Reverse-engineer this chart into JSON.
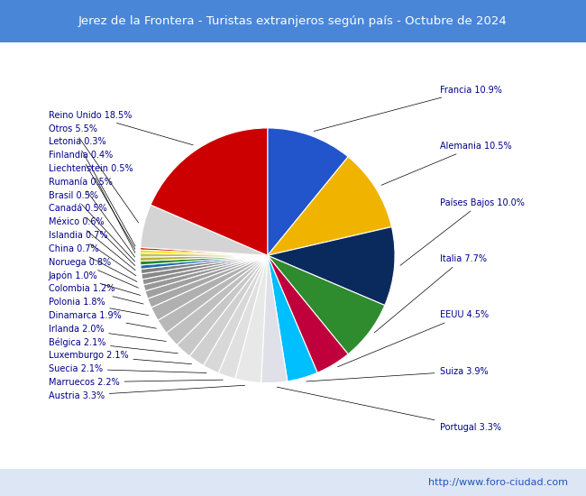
{
  "title": "Jerez de la Frontera - Turistas extranjeros según país - Octubre de 2024",
  "title_bg": "#4a86d8",
  "title_color": "white",
  "footer": "http://www.foro-ciudad.com",
  "footer_bg": "#dce6f5",
  "slices": [
    {
      "label": "Francia",
      "pct": 10.9,
      "color": "#2255cc"
    },
    {
      "label": "Alemania",
      "pct": 10.5,
      "color": "#f0b400"
    },
    {
      "label": "Países Bajos",
      "pct": 10.0,
      "color": "#0a2a5e"
    },
    {
      "label": "Italia",
      "pct": 7.7,
      "color": "#2e8b2e"
    },
    {
      "label": "EEUU",
      "pct": 4.5,
      "color": "#c0003c"
    },
    {
      "label": "Suiza",
      "pct": 3.9,
      "color": "#00bfff"
    },
    {
      "label": "Portugal",
      "pct": 3.3,
      "color": "#e0e0e8"
    },
    {
      "label": "Austria",
      "pct": 3.3,
      "color": "#e8e8e8"
    },
    {
      "label": "Marruecos",
      "pct": 2.2,
      "color": "#e0e0e0"
    },
    {
      "label": "Suecia",
      "pct": 2.1,
      "color": "#d8d8d8"
    },
    {
      "label": "Luxemburgo",
      "pct": 2.1,
      "color": "#d0d0d0"
    },
    {
      "label": "Bélgica",
      "pct": 2.1,
      "color": "#c8c8c8"
    },
    {
      "label": "Irlanda",
      "pct": 2.0,
      "color": "#c0c0c0"
    },
    {
      "label": "Dinamarca",
      "pct": 1.9,
      "color": "#b8b8b8"
    },
    {
      "label": "Polonia",
      "pct": 1.8,
      "color": "#b0b0b0"
    },
    {
      "label": "Colombia",
      "pct": 1.2,
      "color": "#a8a8a8"
    },
    {
      "label": "Japón",
      "pct": 1.0,
      "color": "#a0a0a0"
    },
    {
      "label": "Noruega",
      "pct": 0.8,
      "color": "#989898"
    },
    {
      "label": "China",
      "pct": 0.7,
      "color": "#909090"
    },
    {
      "label": "Islandia",
      "pct": 0.7,
      "color": "#888888"
    },
    {
      "label": "México",
      "pct": 0.6,
      "color": "#808080"
    },
    {
      "label": "Canadá",
      "pct": 0.5,
      "color": "#1a6bb5"
    },
    {
      "label": "Brasil",
      "pct": 0.5,
      "color": "#228b22"
    },
    {
      "label": "Rumanía",
      "pct": 0.5,
      "color": "#b8b040"
    },
    {
      "label": "Liechtenstein",
      "pct": 0.5,
      "color": "#c8c060"
    },
    {
      "label": "Finlandia",
      "pct": 0.4,
      "color": "#ffdd00"
    },
    {
      "label": "Letonia",
      "pct": 0.3,
      "color": "#cc2200"
    },
    {
      "label": "Otros",
      "pct": 5.5,
      "color": "#d4d4d4"
    },
    {
      "label": "Reino Unido",
      "pct": 18.5,
      "color": "#cc0000"
    }
  ],
  "label_color": "#00008b",
  "label_fontsize": 7.0
}
